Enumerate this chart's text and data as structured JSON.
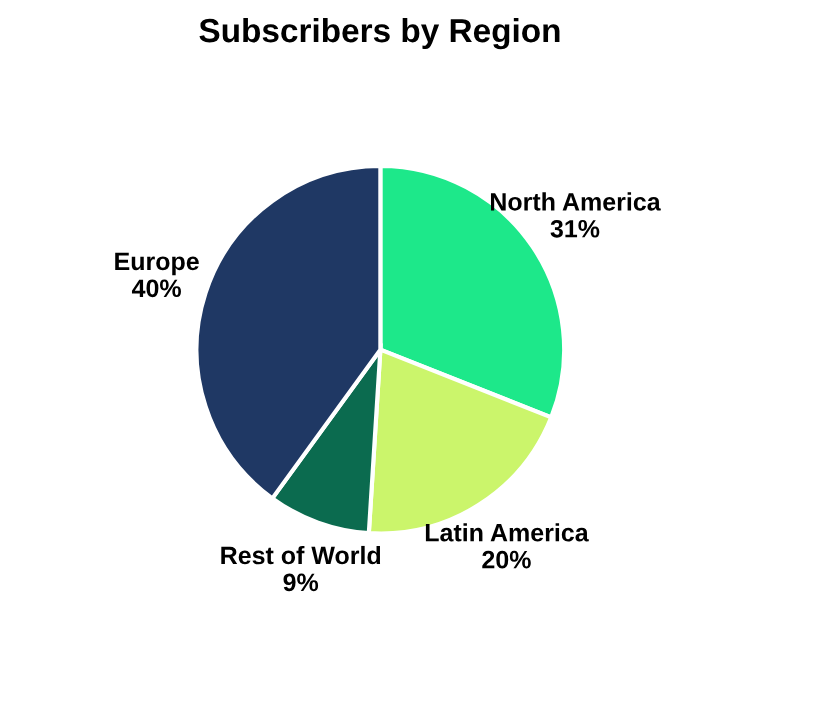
{
  "chart_data": {
    "type": "pie",
    "title": "Subscribers by Region",
    "categories": [
      "North America",
      "Latin America",
      "Rest of World",
      "Europe"
    ],
    "values": [
      31,
      20,
      9,
      40
    ],
    "value_labels": [
      "31%",
      "20%",
      "9%",
      "40%"
    ],
    "colors": [
      "#1de88a",
      "#cbf56b",
      "#0b6b4f",
      "#1f3864"
    ],
    "legend": false
  }
}
